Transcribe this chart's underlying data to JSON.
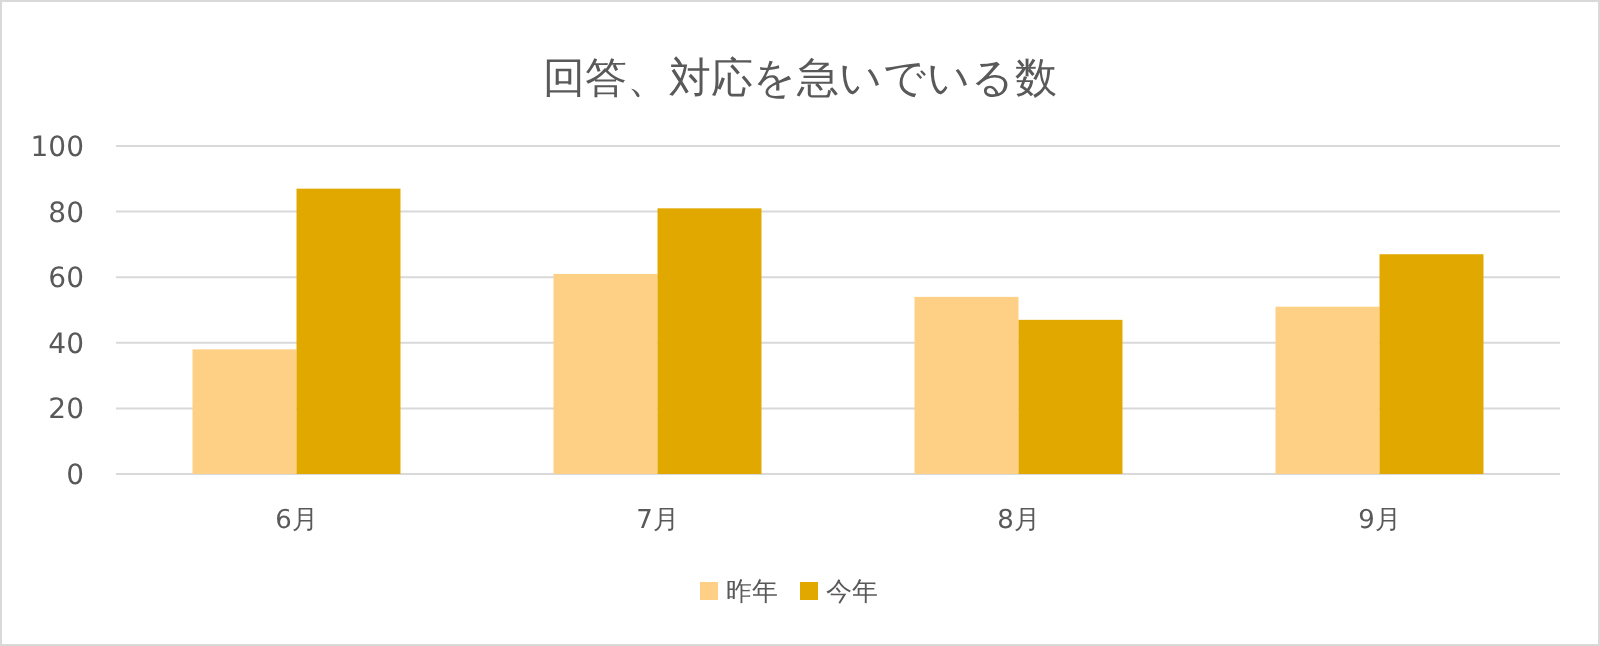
{
  "chart_data": {
    "type": "bar",
    "title": "回答、対応を急いでいる数",
    "categories": [
      "6月",
      "7月",
      "8月",
      "9月"
    ],
    "series": [
      {
        "name": "昨年",
        "color": "#fdd086",
        "values": [
          38,
          61,
          54,
          51
        ]
      },
      {
        "name": "今年",
        "color": "#e1a900",
        "values": [
          87,
          81,
          47,
          67
        ]
      }
    ],
    "ylim": [
      0,
      100
    ],
    "yticks": [
      0,
      20,
      40,
      60,
      80,
      100
    ],
    "grid": "y",
    "legend": "bottom"
  }
}
